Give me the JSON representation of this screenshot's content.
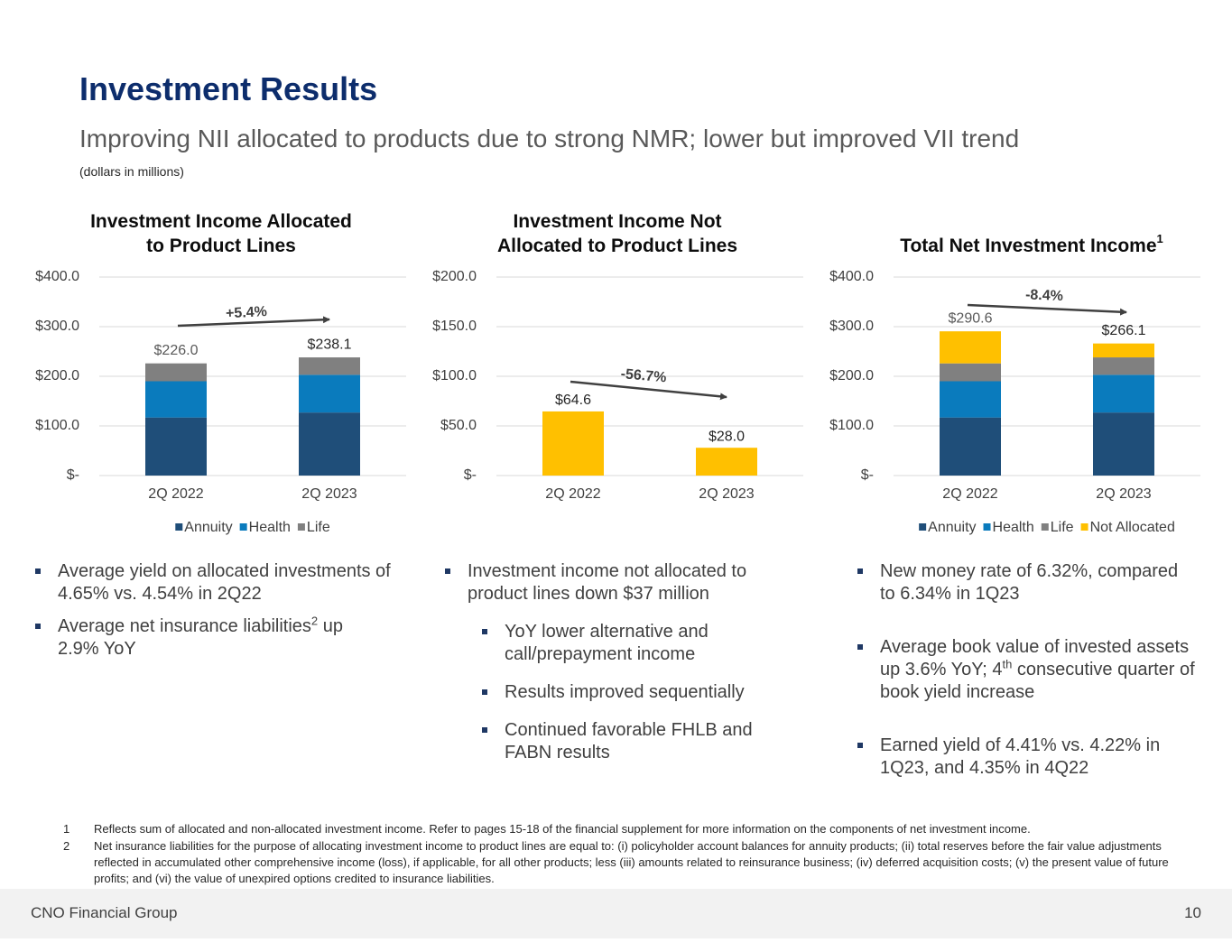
{
  "title": "Investment Results",
  "subtitle": "Improving NII allocated to products due to strong NMR; lower but improved VII trend",
  "units_note": "(dollars in millions)",
  "chart_data": [
    {
      "type": "bar",
      "stacked": true,
      "title": [
        "Investment Income Allocated",
        "to Product Lines"
      ],
      "categories": [
        "2Q 2022",
        "2Q 2023"
      ],
      "series": [
        {
          "name": "Annuity",
          "color": "#1f4e79",
          "values": [
            117,
            127
          ]
        },
        {
          "name": "Health",
          "color": "#0a7bbd",
          "values": [
            73,
            76
          ]
        },
        {
          "name": "Life",
          "color": "#808080",
          "values": [
            36,
            35.1
          ]
        }
      ],
      "totals": [
        226.0,
        238.1
      ],
      "total_labels": [
        "$226.0",
        "$238.1"
      ],
      "annotation": "+5.4%",
      "ylim": [
        0,
        400
      ],
      "yticks": [
        {
          "value": 0,
          "label": "$-"
        },
        {
          "value": 100,
          "label": "$100.0"
        },
        {
          "value": 200,
          "label": "$200.0"
        },
        {
          "value": 300,
          "label": "$300.0"
        },
        {
          "value": 400,
          "label": "$400.0"
        }
      ],
      "grid": true,
      "legend": "bottom"
    },
    {
      "type": "bar",
      "title": [
        "Investment Income Not",
        "Allocated to Product Lines"
      ],
      "categories": [
        "2Q 2022",
        "2Q 2023"
      ],
      "values": [
        64.6,
        28.0
      ],
      "value_labels": [
        "$64.6",
        "$28.0"
      ],
      "color": "#ffc000",
      "annotation": "-56.7%",
      "ylim": [
        0,
        200
      ],
      "yticks": [
        {
          "value": 0,
          "label": "$-"
        },
        {
          "value": 50,
          "label": "$50.0"
        },
        {
          "value": 100,
          "label": "$100.0"
        },
        {
          "value": 150,
          "label": "$150.0"
        },
        {
          "value": 200,
          "label": "$200.0"
        }
      ],
      "grid": true
    },
    {
      "type": "bar",
      "stacked": true,
      "title": [
        "Total Net Investment Income"
      ],
      "title_superscript": "1",
      "categories": [
        "2Q 2022",
        "2Q 2023"
      ],
      "series": [
        {
          "name": "Annuity",
          "color": "#1f4e79",
          "values": [
            117,
            127
          ]
        },
        {
          "name": "Health",
          "color": "#0a7bbd",
          "values": [
            73,
            76
          ]
        },
        {
          "name": "Life",
          "color": "#808080",
          "values": [
            36,
            35.1
          ]
        },
        {
          "name": "Not Allocated",
          "color": "#ffc000",
          "values": [
            64.6,
            28.0
          ]
        }
      ],
      "totals": [
        290.6,
        266.1
      ],
      "total_labels": [
        "$290.6",
        "$266.1"
      ],
      "annotation": "-8.4%",
      "ylim": [
        0,
        400
      ],
      "yticks": [
        {
          "value": 0,
          "label": "$-"
        },
        {
          "value": 100,
          "label": "$100.0"
        },
        {
          "value": 200,
          "label": "$200.0"
        },
        {
          "value": 300,
          "label": "$300.0"
        },
        {
          "value": 400,
          "label": "$400.0"
        }
      ],
      "grid": true,
      "legend": "bottom"
    }
  ],
  "bullets": {
    "col1": [
      {
        "text": "Average yield on allocated investments of 4.65% vs. 4.54% in 2Q22"
      },
      {
        "text": "Average net insurance liabilities",
        "sup": "2",
        "rest": " up 2.9% YoY"
      }
    ],
    "col2": [
      {
        "text": "Investment income not allocated to product lines down $37 million"
      },
      {
        "text": "YoY lower alternative and call/prepayment income"
      },
      {
        "text": "Results improved sequentially"
      },
      {
        "text": "Continued favorable FHLB and FABN results"
      }
    ],
    "col3": [
      {
        "text": "New money rate of 6.32%, compared to 6.34% in 1Q23"
      },
      {
        "text": "Average book value of invested assets up 3.6% YoY; 4",
        "sup": "th",
        "rest": " consecutive quarter of book yield increase"
      },
      {
        "text": "Earned yield of 4.41% vs. 4.22% in 1Q23, and 4.35% in 4Q22"
      }
    ]
  },
  "footnotes": [
    {
      "number": "1",
      "text": "Reflects sum of allocated and non-allocated investment income. Refer to pages 15-18 of the financial supplement for more information on the components of net investment income."
    },
    {
      "number": "2",
      "text": "Net insurance liabilities for the purpose of allocating investment income to product lines are equal to: (i) policyholder account balances for annuity products; (ii) total reserves before the fair value adjustments reflected in accumulated other comprehensive income (loss), if applicable, for all other products; less (iii) amounts related to reinsurance business; (iv) deferred acquisition costs; (v) the present value of future profits; and (vi) the value of unexpired options credited to insurance liabilities."
    }
  ],
  "footer": {
    "company": "CNO Financial Group",
    "page": "10"
  }
}
